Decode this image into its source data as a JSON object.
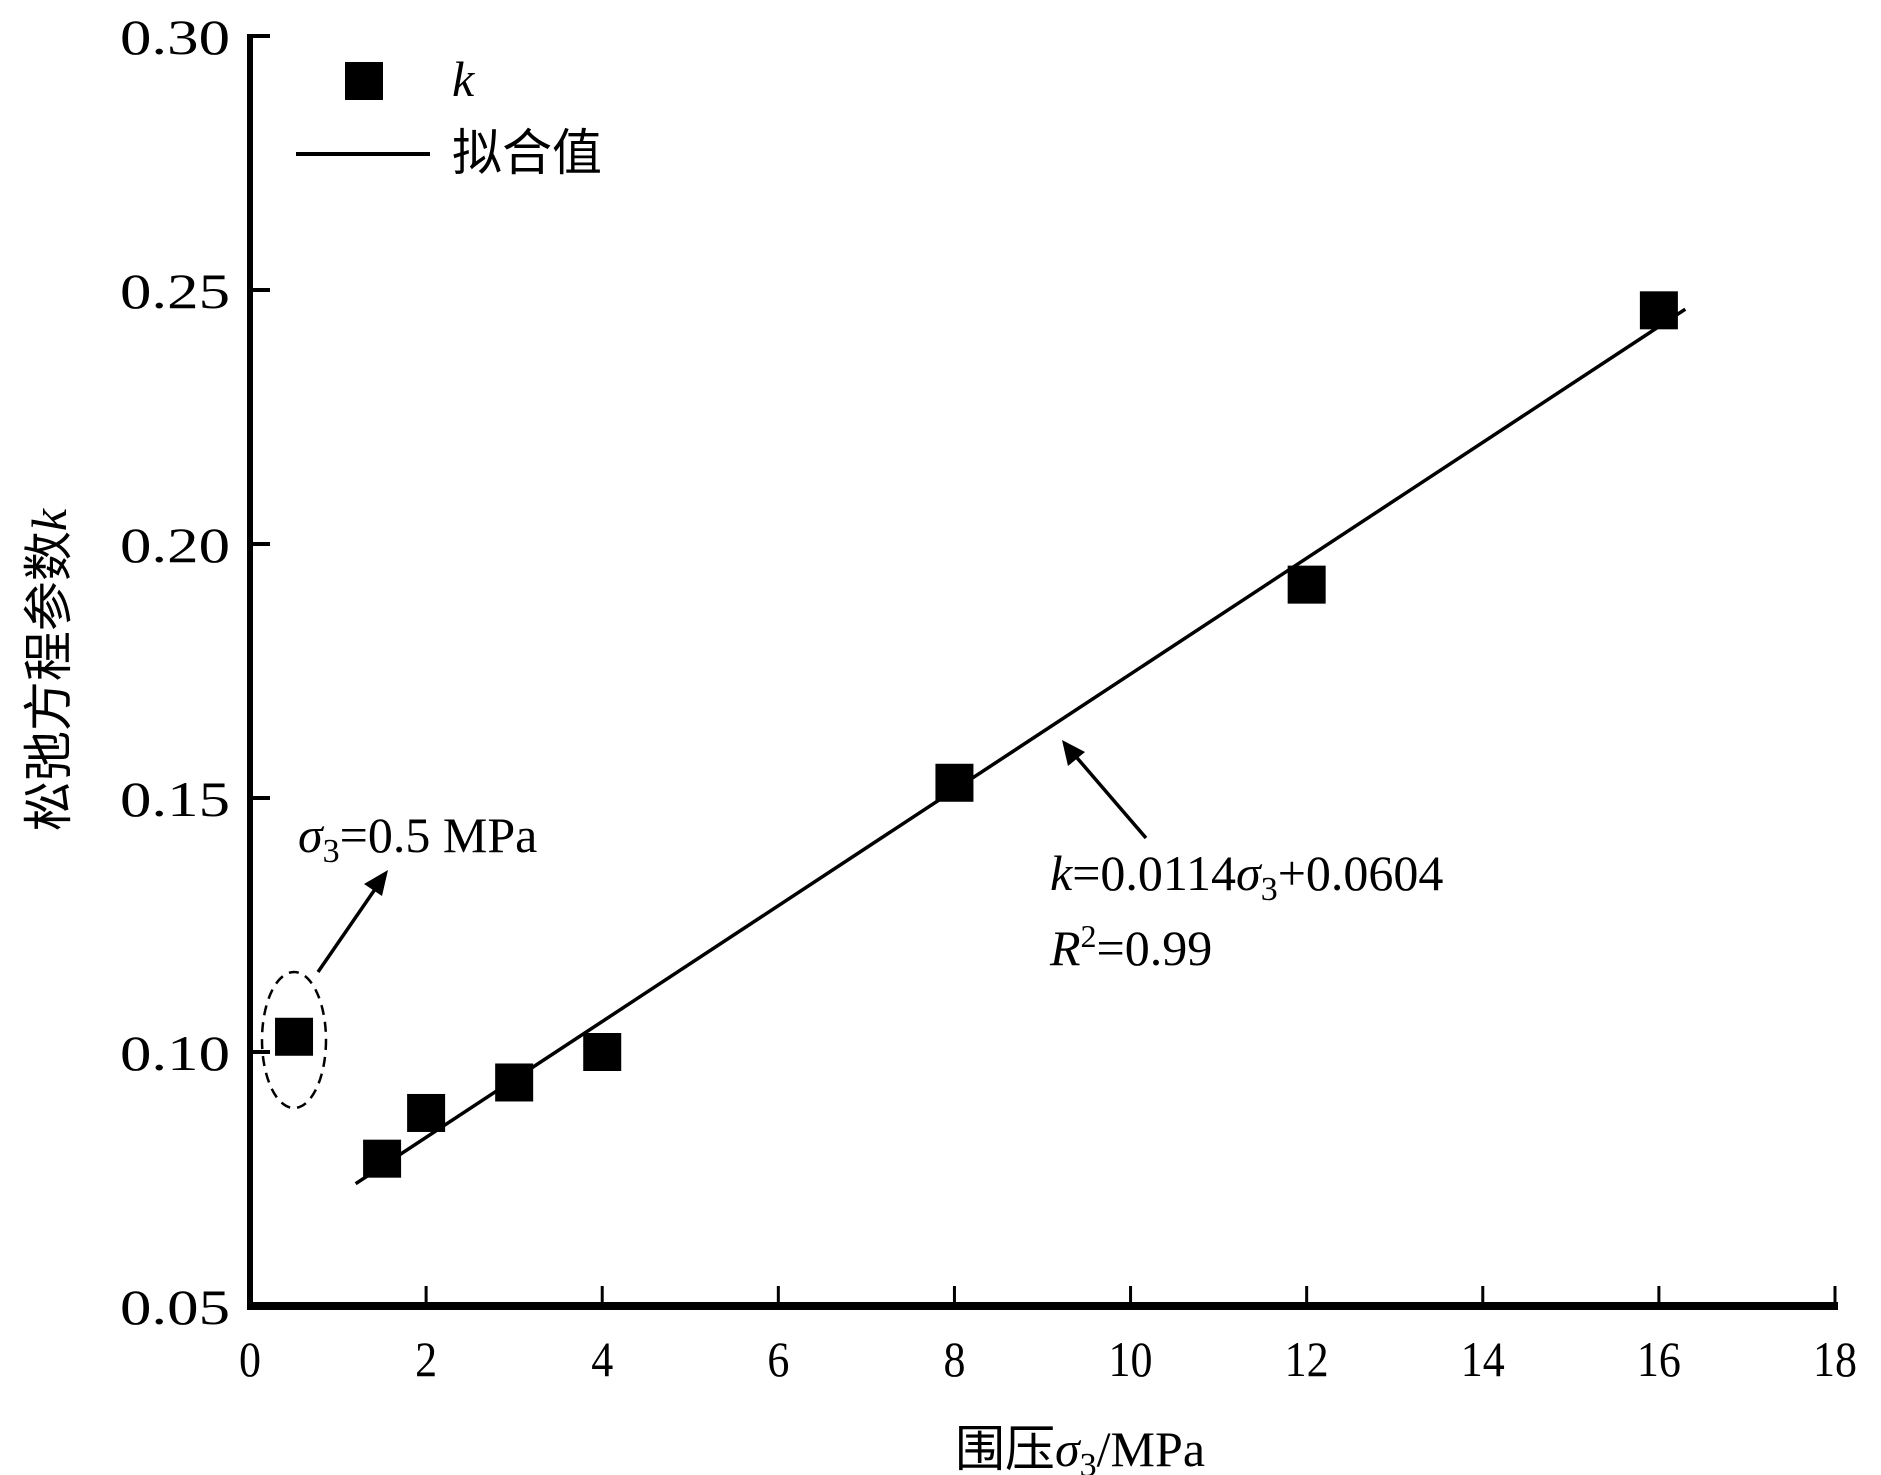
{
  "chart_data": {
    "type": "scatter",
    "title": "",
    "xlabel": "围压σ3/MPa",
    "xlabel_parts": {
      "prefix": "围压",
      "symbol": "σ",
      "sub": "3",
      "suffix": "/MPa"
    },
    "ylabel": "松弛方程参数k",
    "ylabel_parts": {
      "prefix": "松弛方程参数",
      "symbol": "k"
    },
    "xlim": [
      0,
      18
    ],
    "ylim": [
      0.05,
      0.3
    ],
    "xticks": [
      "0",
      "2",
      "4",
      "6",
      "8",
      "10",
      "12",
      "14",
      "16",
      "18"
    ],
    "yticks": [
      "0.05",
      "0.10",
      "0.15",
      "0.20",
      "0.25",
      "0.30"
    ],
    "grid": false,
    "legend": {
      "placement": "top-left",
      "entries": [
        {
          "label": "k",
          "marker": "square"
        },
        {
          "label": "拟合值",
          "marker": "line"
        }
      ]
    },
    "series": [
      {
        "name": "k",
        "type": "scatter",
        "x": [
          0.5,
          1.5,
          2,
          3,
          4,
          8,
          12,
          16
        ],
        "y": [
          0.103,
          0.079,
          0.088,
          0.094,
          0.1,
          0.153,
          0.192,
          0.246
        ]
      },
      {
        "name": "拟合值",
        "type": "line",
        "slope": 0.0114,
        "intercept": 0.0604,
        "x_range": [
          1.2,
          16.3
        ]
      }
    ],
    "annotations": {
      "outlier": {
        "symbol": "σ",
        "sub": "3",
        "text": "=0.5 MPa",
        "x": 0.5,
        "y": 0.103
      },
      "equation": {
        "k": "k",
        "eq": "=0.0114",
        "sigma": "σ",
        "sub": "3",
        "rest": "+0.0604"
      },
      "r2": {
        "R": "R",
        "sup": "2",
        "rest": "=0.99"
      }
    }
  },
  "colors": {
    "ink": "#000000",
    "background": "#ffffff"
  }
}
